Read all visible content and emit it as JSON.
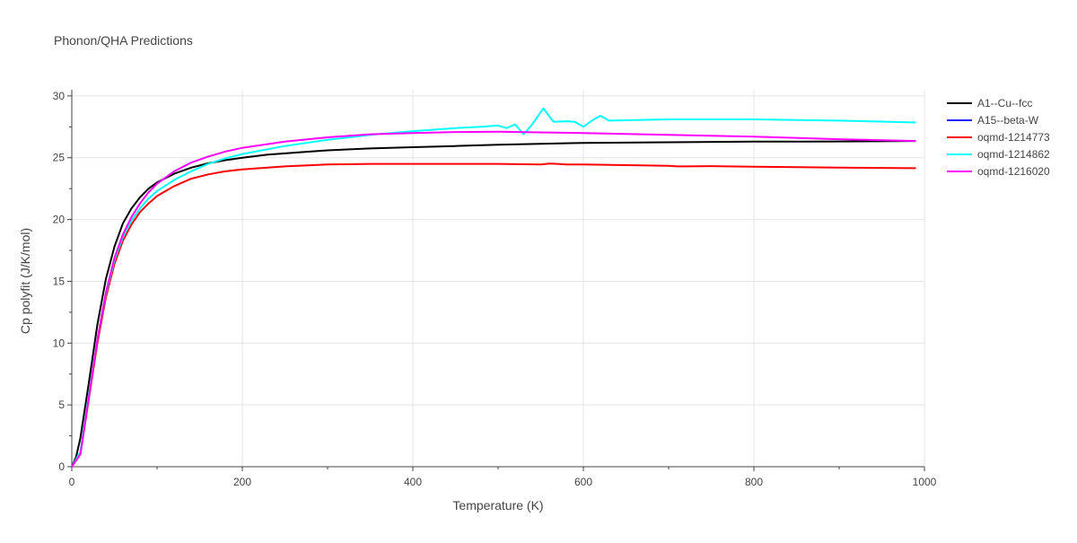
{
  "chart_data": {
    "type": "line",
    "title": "Phonon/QHA Predictions",
    "xlabel": "Temperature (K)",
    "ylabel": "Cp polyfit (J/K/mol)",
    "xlim": [
      0,
      1000
    ],
    "ylim": [
      0,
      30.5
    ],
    "x_ticks": [
      0,
      200,
      400,
      600,
      800,
      1000
    ],
    "y_ticks": [
      0,
      5,
      10,
      15,
      20,
      25,
      30
    ],
    "grid": true,
    "legend_position": "right",
    "series": [
      {
        "name": "A1--Cu--fcc",
        "color": "#000000",
        "x": [
          0,
          5,
          10,
          20,
          30,
          40,
          50,
          60,
          70,
          80,
          90,
          100,
          120,
          140,
          160,
          180,
          200,
          230,
          270,
          300,
          350,
          400,
          450,
          500,
          600,
          700,
          800,
          900,
          990
        ],
        "y": [
          0,
          0.8,
          2.3,
          6.8,
          11.5,
          15.2,
          17.8,
          19.7,
          20.9,
          21.8,
          22.5,
          23.0,
          23.7,
          24.2,
          24.55,
          24.8,
          25.0,
          25.25,
          25.45,
          25.6,
          25.75,
          25.85,
          25.95,
          26.05,
          26.2,
          26.25,
          26.3,
          26.32,
          26.35
        ]
      },
      {
        "name": "A15--beta-W",
        "color": "#1f1fff",
        "x": [],
        "y": []
      },
      {
        "name": "oqmd-1214773",
        "color": "#ff0000",
        "x": [
          0,
          10,
          20,
          30,
          40,
          50,
          60,
          70,
          80,
          90,
          100,
          120,
          140,
          160,
          180,
          200,
          250,
          300,
          350,
          400,
          450,
          500,
          550,
          560,
          570,
          580,
          600,
          650,
          700,
          710,
          750,
          800,
          900,
          990
        ],
        "y": [
          0,
          1.0,
          5.5,
          10.0,
          13.7,
          16.4,
          18.3,
          19.6,
          20.6,
          21.3,
          21.9,
          22.7,
          23.3,
          23.65,
          23.9,
          24.05,
          24.3,
          24.45,
          24.5,
          24.5,
          24.5,
          24.5,
          24.45,
          24.52,
          24.5,
          24.45,
          24.45,
          24.4,
          24.35,
          24.3,
          24.32,
          24.28,
          24.2,
          24.15
        ]
      },
      {
        "name": "oqmd-1214862",
        "color": "#00ffff",
        "x": [
          0,
          10,
          20,
          30,
          40,
          50,
          60,
          70,
          80,
          90,
          100,
          120,
          140,
          160,
          180,
          200,
          250,
          300,
          350,
          400,
          450,
          480,
          500,
          510,
          520,
          530,
          540,
          553,
          565,
          580,
          590,
          600,
          610,
          620,
          630,
          700,
          800,
          900,
          990
        ],
        "y": [
          0,
          1.2,
          5.8,
          10.3,
          14.0,
          16.7,
          18.6,
          19.9,
          20.9,
          21.7,
          22.3,
          23.2,
          23.9,
          24.5,
          24.95,
          25.3,
          25.95,
          26.45,
          26.85,
          27.15,
          27.4,
          27.5,
          27.6,
          27.4,
          27.7,
          26.9,
          27.7,
          29.0,
          27.9,
          27.95,
          27.9,
          27.5,
          28.0,
          28.4,
          28.0,
          28.1,
          28.1,
          28.0,
          27.85
        ]
      },
      {
        "name": "oqmd-1216020",
        "color": "#ff00ff",
        "x": [
          0,
          10,
          20,
          30,
          40,
          50,
          60,
          70,
          80,
          90,
          100,
          120,
          140,
          160,
          180,
          200,
          250,
          300,
          350,
          400,
          450,
          500,
          550,
          600,
          700,
          800,
          900,
          990
        ],
        "y": [
          0,
          1.0,
          5.6,
          10.3,
          14.1,
          16.9,
          18.8,
          20.2,
          21.3,
          22.2,
          22.9,
          23.9,
          24.6,
          25.1,
          25.5,
          25.8,
          26.3,
          26.65,
          26.9,
          27.0,
          27.08,
          27.1,
          27.05,
          27.0,
          26.85,
          26.7,
          26.5,
          26.35
        ]
      }
    ]
  }
}
